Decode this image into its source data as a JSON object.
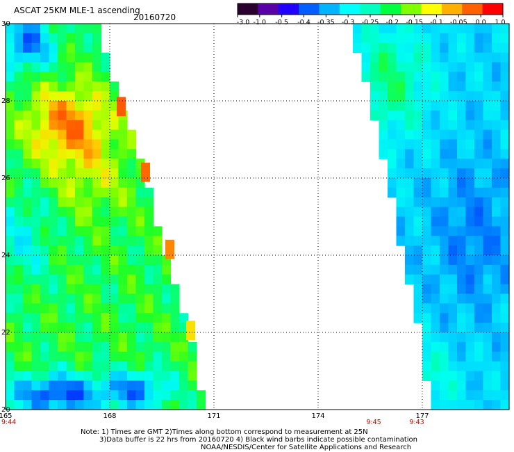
{
  "header": {
    "title": "ASCAT 25KM MLE-1 ascending",
    "date": "20160720"
  },
  "colorbar": {
    "ticks": [
      "-3.0",
      "-1.0",
      "-0.5",
      "-0.4",
      "-0.35",
      "-0.3",
      "-0.25",
      "-0.2",
      "-0.15",
      "-0.1",
      "-0.05",
      "0.0",
      "1.0"
    ],
    "colors": [
      "#2a002e",
      "#5a00a8",
      "#2000ff",
      "#0060ff",
      "#00b4ff",
      "#00ffff",
      "#00ffc0",
      "#00ff40",
      "#80ff00",
      "#ffff00",
      "#ffb000",
      "#ff6000",
      "#ff0000"
    ]
  },
  "axes": {
    "lat_labels": [
      "30",
      "28",
      "26",
      "24",
      "22",
      "20"
    ],
    "lon_labels": [
      "165",
      "168",
      "171",
      "174",
      "177"
    ]
  },
  "times": {
    "left": "9:44",
    "mid_a": "9:45",
    "mid_b": "9:43"
  },
  "notes": {
    "line1": "Note: 1) Times are GMT 2)Times along bottom correspond to measurement at 25N",
    "line2": "3)Data buffer is 22 hrs from 20160720 4) Black wind barbs indicate possible contamination",
    "line3": "NOAA/NESDIS/Center for Satellite Applications and Research"
  },
  "map_data": {
    "lat_range": [
      20,
      30
    ],
    "lon_range": [
      165,
      179.5
    ],
    "swaths": [
      {
        "name": "left-swath",
        "west_lon": 165,
        "east_edge": [
          [
            30,
            167.5
          ],
          [
            28,
            168.2
          ],
          [
            26,
            168.9
          ],
          [
            24,
            169.5
          ],
          [
            22,
            170.2
          ],
          [
            20,
            170.6
          ]
        ]
      },
      {
        "name": "right-swath",
        "east_lon": 179.5,
        "west_edge": [
          [
            30,
            174.8
          ],
          [
            28,
            175.4
          ],
          [
            26,
            175.9
          ],
          [
            24,
            176.3
          ],
          [
            22,
            176.8
          ],
          [
            20,
            177.1
          ]
        ]
      }
    ]
  }
}
